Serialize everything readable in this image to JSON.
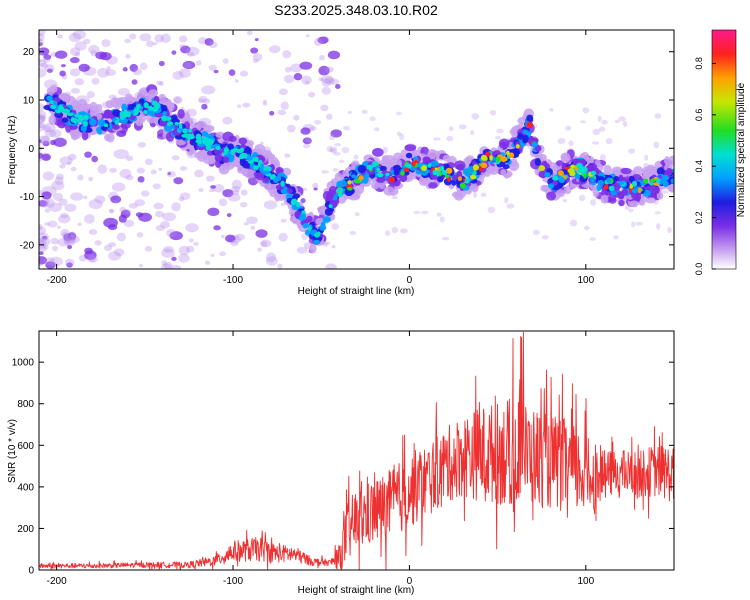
{
  "title": "S233.2025.348.03.10.R02",
  "colors": {
    "snr_line": "#ee3030",
    "axis": "#000000",
    "purple": "#9a50e6"
  },
  "chart_data": [
    {
      "type": "heatmap",
      "xlabel": "Height of straight line (km)",
      "ylabel": "Frequency (Hz)",
      "xlim": [
        -210,
        150
      ],
      "ylim": [
        -25,
        24.5
      ],
      "xticks": [
        -200,
        -100,
        0,
        100
      ],
      "yticks": [
        -20,
        -10,
        0,
        10,
        20
      ],
      "xtick_labels": [
        "-200",
        "-100",
        "0",
        "100"
      ],
      "ytick_labels": [
        "-20",
        "-10",
        "0",
        "10",
        "20"
      ],
      "colorbar": {
        "label": "Normalized spectral amplitude",
        "range": [
          0,
          0.93
        ],
        "ticks": [
          0,
          0.2,
          0.4,
          0.6,
          0.8
        ],
        "tick_labels": [
          "0.0",
          "0.2",
          "0.4",
          "0.6",
          "0.8"
        ]
      },
      "ridge": {
        "x": [
          -205,
          -190,
          -175,
          -160,
          -145,
          -135,
          -120,
          -105,
          -95,
          -80,
          -70,
          -60,
          -52,
          -46,
          -40,
          -35,
          -30,
          -25,
          -20,
          -15,
          -10,
          -5,
          0,
          5,
          10,
          20,
          30,
          40,
          45,
          50,
          55,
          60,
          65,
          68,
          70,
          75,
          80,
          85,
          90,
          95,
          100,
          105,
          110,
          120,
          130,
          140,
          145,
          150
        ],
        "y": [
          10,
          6,
          5,
          7,
          9,
          5,
          2,
          -1,
          -1,
          -5,
          -8,
          -14,
          -19,
          -12,
          -9,
          -8,
          -6,
          -5,
          -4,
          -5,
          -6,
          -5,
          -3,
          -3,
          -4,
          -5,
          -7,
          -4,
          -1,
          -3,
          -2,
          0,
          3,
          5,
          2,
          -4,
          -7,
          -6,
          -5,
          -4,
          -5,
          -6,
          -7,
          -8,
          -8,
          -7,
          -6,
          -6
        ]
      }
    },
    {
      "type": "line",
      "xlabel": "Height of straight line (km)",
      "ylabel": "SNR (10 * v/v)",
      "xlim": [
        -210,
        150
      ],
      "ylim": [
        0,
        1150
      ],
      "xticks": [
        -200,
        -100,
        0,
        100
      ],
      "yticks": [
        0,
        200,
        400,
        600,
        800,
        1000
      ],
      "xtick_labels": [
        "-200",
        "-100",
        "0",
        "100"
      ],
      "ytick_labels": [
        "0",
        "200",
        "400",
        "600",
        "800",
        "1000"
      ],
      "envelope": {
        "x": [
          -210,
          -180,
          -150,
          -125,
          -110,
          -100,
          -85,
          -75,
          -65,
          -55,
          -45,
          -40,
          -35,
          -30,
          -20,
          -10,
          0,
          10,
          20,
          30,
          40,
          50,
          60,
          70,
          80,
          90,
          100,
          105,
          110,
          120,
          130,
          140,
          150
        ],
        "base": [
          20,
          20,
          25,
          25,
          45,
          90,
          100,
          80,
          75,
          40,
          35,
          60,
          180,
          240,
          280,
          320,
          380,
          430,
          500,
          550,
          560,
          560,
          570,
          550,
          520,
          500,
          460,
          440,
          460,
          470,
          460,
          480,
          460
        ],
        "spread": [
          12,
          12,
          12,
          15,
          25,
          50,
          60,
          45,
          40,
          20,
          15,
          60,
          150,
          150,
          160,
          170,
          180,
          180,
          180,
          200,
          230,
          250,
          260,
          240,
          230,
          230,
          200,
          150,
          110,
          110,
          110,
          130,
          140
        ]
      }
    }
  ]
}
